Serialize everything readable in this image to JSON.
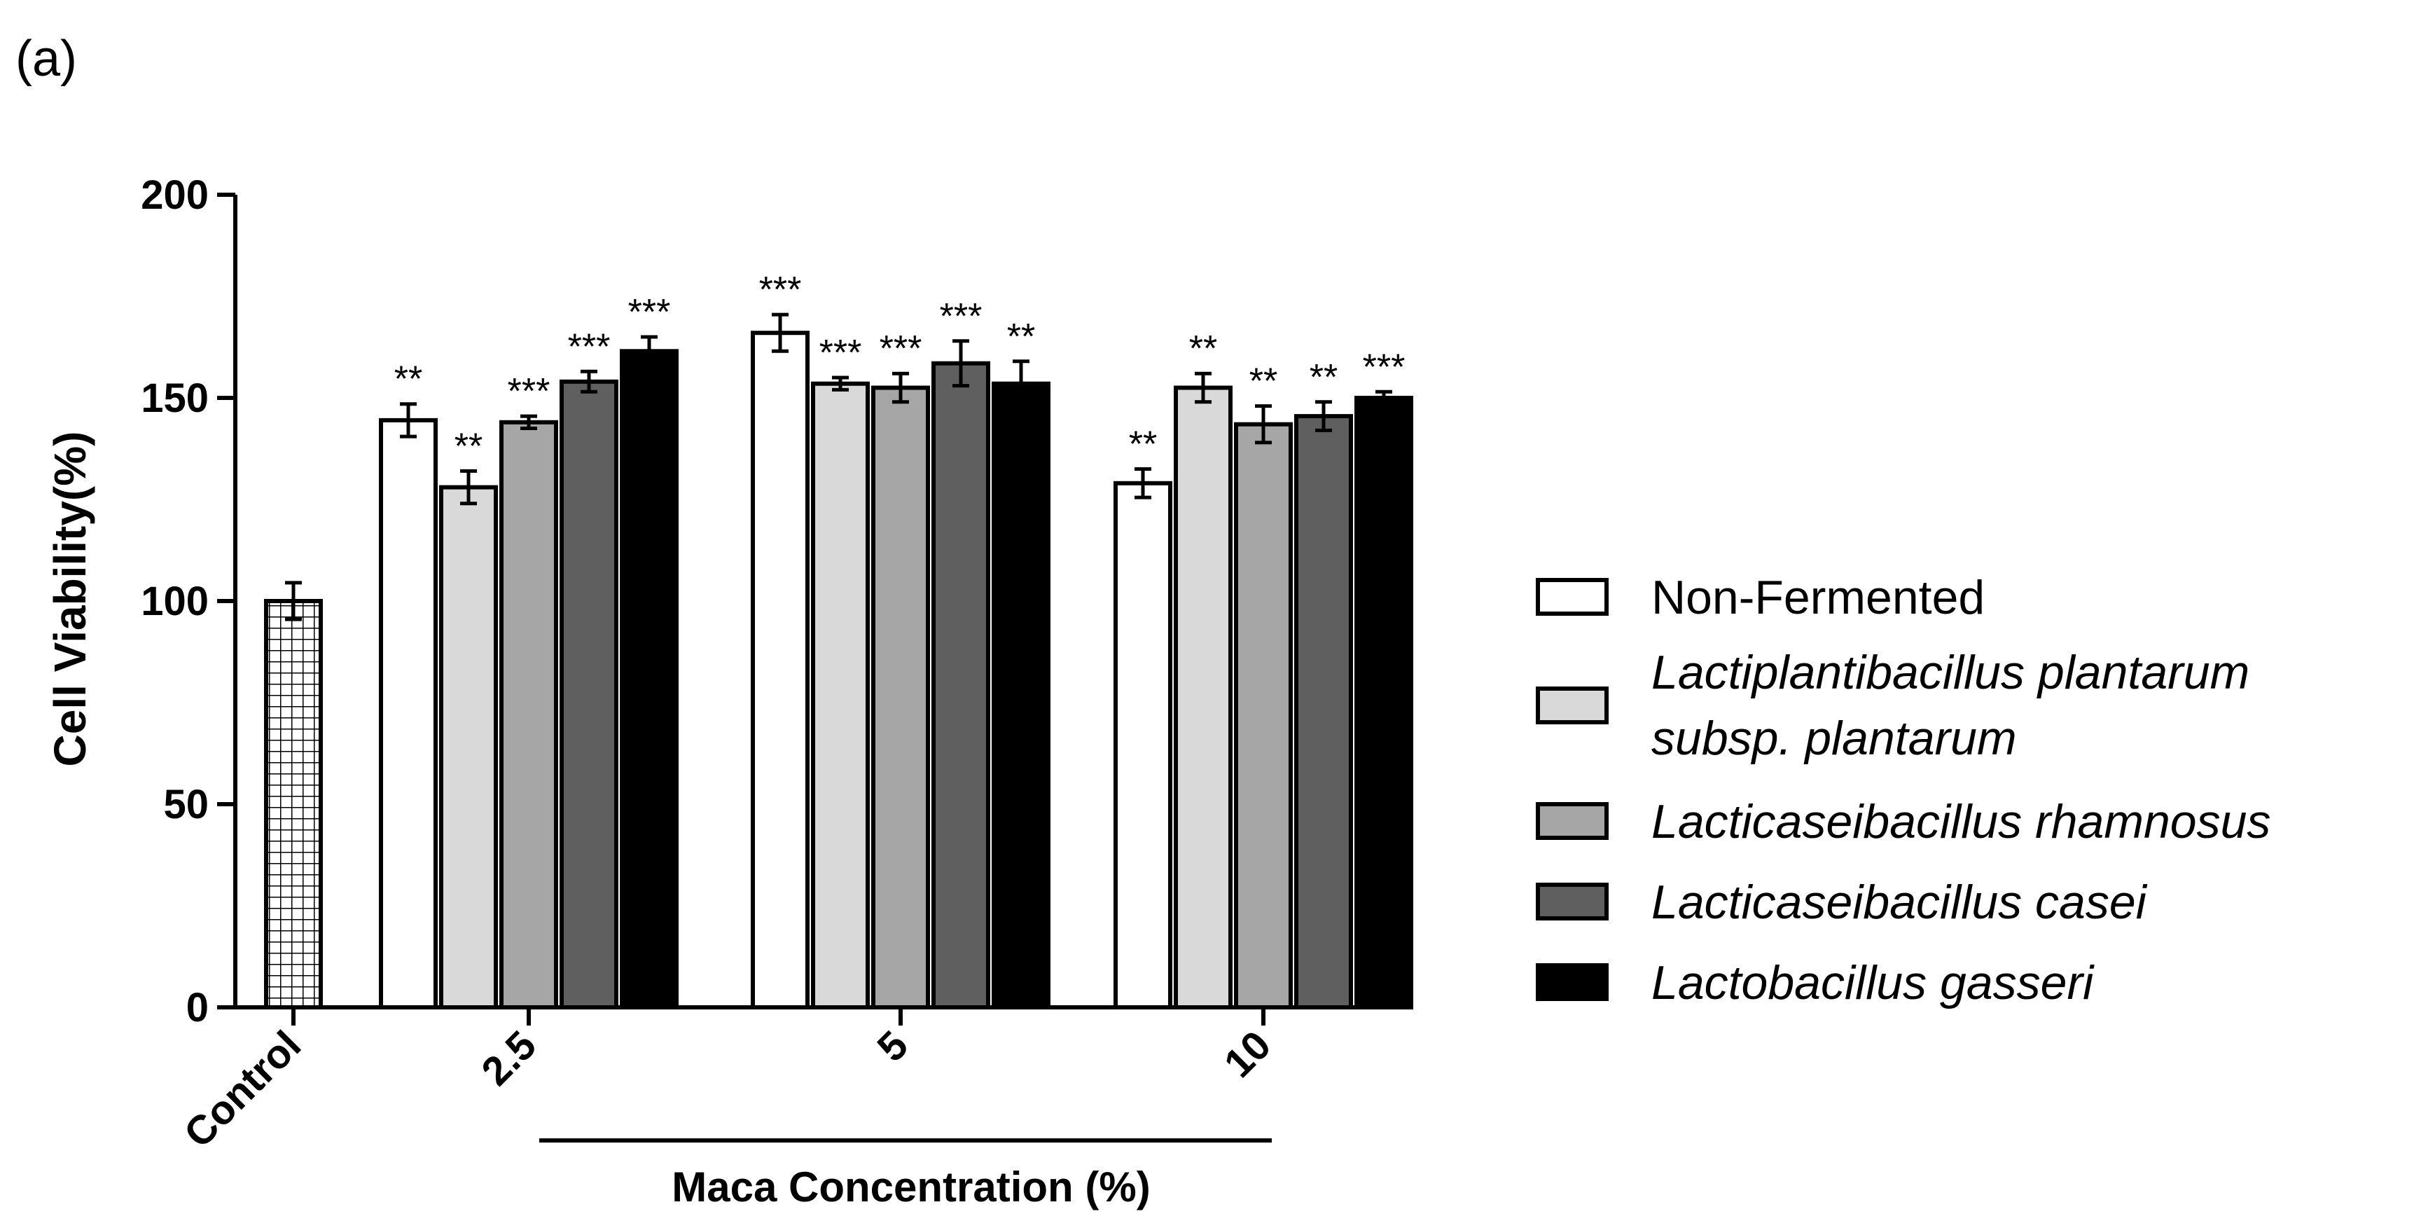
{
  "panel_label": "(a)",
  "chart_data": {
    "type": "bar",
    "title": "",
    "ylabel": "Cell Viability(%)",
    "xlabel": "Maca Concentration (%)",
    "ylim": [
      0,
      200
    ],
    "yticks": [
      0,
      50,
      100,
      150,
      200
    ],
    "control": {
      "label": "Control",
      "value": 100,
      "error": 4.5,
      "significance": ""
    },
    "categories": [
      "2.5",
      "5",
      "10"
    ],
    "series": [
      {
        "name": "Non-Fermented",
        "italic": false,
        "fill": "#ffffff",
        "values": [
          144.5,
          166.0,
          129.0
        ],
        "errors": [
          4.0,
          4.5,
          3.5
        ],
        "significance": [
          "**",
          "***",
          "**"
        ]
      },
      {
        "name": "Lactiplantibacillus plantarum subsp. plantarum",
        "name_line1": "Lactiplantibacillus plantarum",
        "name_line2": "subsp. plantarum",
        "italic": true,
        "fill": "#d9d9d9",
        "values": [
          128.0,
          153.5,
          152.5
        ],
        "errors": [
          4.0,
          1.5,
          3.5
        ],
        "significance": [
          "**",
          "***",
          "**"
        ]
      },
      {
        "name": "Lacticaseibacillus rhamnosus",
        "italic": true,
        "fill": "#a6a6a6",
        "values": [
          144.0,
          152.5,
          143.5
        ],
        "errors": [
          1.5,
          3.5,
          4.5
        ],
        "significance": [
          "***",
          "***",
          "**"
        ]
      },
      {
        "name": "Lacticaseibacillus casei",
        "italic": true,
        "fill": "#5f5f5f",
        "values": [
          154.0,
          158.5,
          145.5
        ],
        "errors": [
          2.5,
          5.5,
          3.5
        ],
        "significance": [
          "***",
          "***",
          "**"
        ]
      },
      {
        "name": "Lactobacillus gasseri",
        "italic": true,
        "fill": "#000000",
        "values": [
          161.5,
          153.5,
          150.0
        ],
        "errors": [
          3.5,
          5.5,
          1.5
        ],
        "significance": [
          "***",
          "**",
          "***"
        ]
      }
    ],
    "legend_position": "right"
  }
}
